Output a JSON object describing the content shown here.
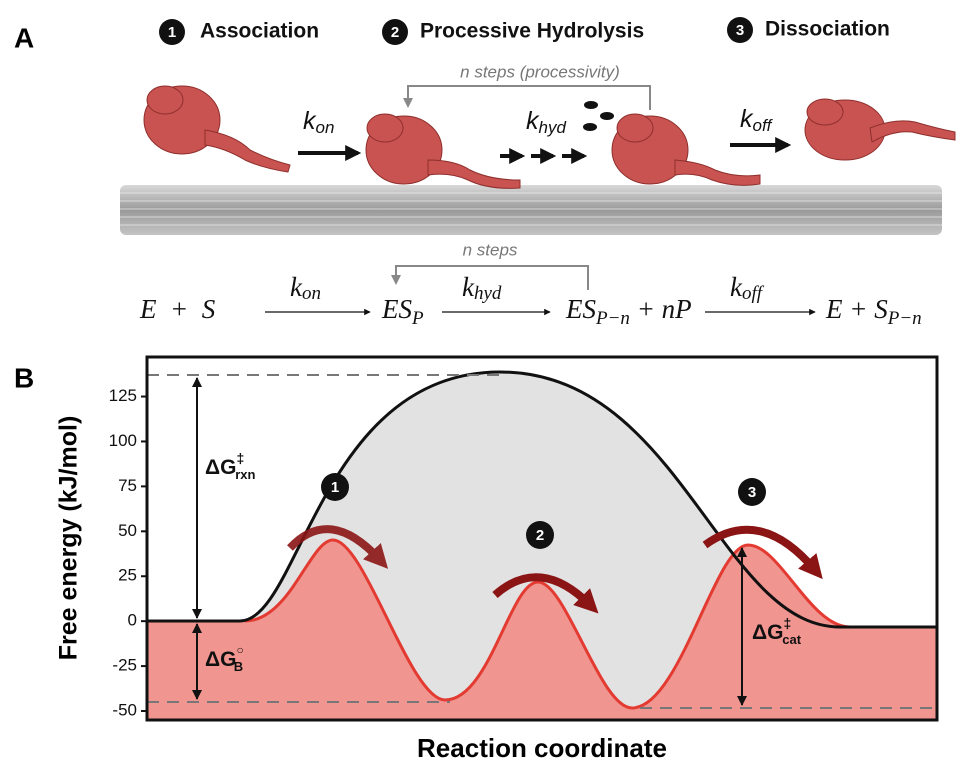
{
  "panel_a": {
    "label": "A",
    "steps": [
      {
        "number": "1",
        "name": "Association"
      },
      {
        "number": "2",
        "name": "Processive Hydrolysis"
      },
      {
        "number": "3",
        "name": "Dissociation"
      }
    ],
    "processivity_note": "n steps (processivity)",
    "rates": [
      {
        "symbol": "k",
        "subscript": "on"
      },
      {
        "symbol": "k",
        "subscript": "hyd"
      },
      {
        "symbol": "k",
        "subscript": "off"
      }
    ],
    "equation": {
      "terms": [
        {
          "main": "E  +  S"
        },
        {
          "main": "ES",
          "sub": "P"
        },
        {
          "main": "ES",
          "sub": "P−n",
          "after": " + nP"
        },
        {
          "main": "E + S",
          "sub": "P−n"
        }
      ],
      "arrow_labels": [
        {
          "symbol": "k",
          "subscript": "on"
        },
        {
          "symbol": "k",
          "subscript": "hyd"
        },
        {
          "symbol": "k",
          "subscript": "off"
        }
      ],
      "note": "n steps"
    }
  },
  "chart_data": {
    "type": "energy-profile",
    "panel_label": "B",
    "ylabel": "Free energy (kJ/mol)",
    "xlabel": "Reaction coordinate",
    "ylim": [
      -55,
      147
    ],
    "yticks": [
      -50,
      -25,
      0,
      25,
      50,
      75,
      100,
      125
    ],
    "annotations": [
      {
        "base": "ΔG",
        "sup": "‡",
        "sub": "rxn"
      },
      {
        "base": "ΔG",
        "sup": "○",
        "sub": "B"
      },
      {
        "base": "ΔG",
        "sup": "‡",
        "sub": "cat"
      }
    ],
    "step_markers": [
      "1",
      "2",
      "3"
    ]
  }
}
